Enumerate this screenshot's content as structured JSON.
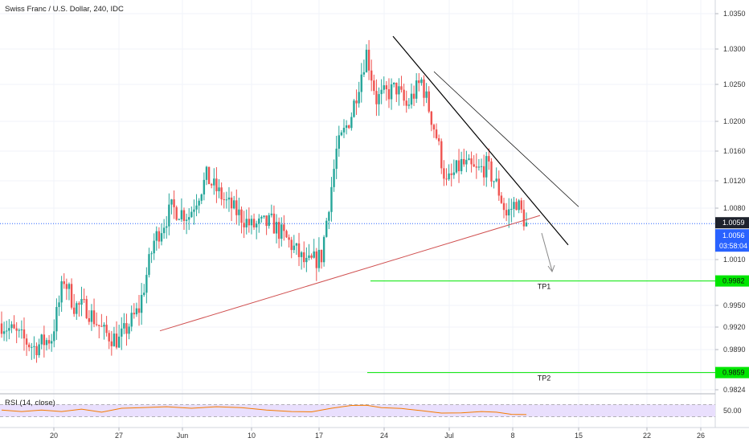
{
  "chart_data": [
    {
      "type": "candlestick",
      "title": "Swiss Franc / U.S. Dollar, 240, IDC",
      "price_axis_ticks": [
        "1.0350",
        "1.0300",
        "1.0250",
        "1.0200",
        "1.0160",
        "1.0120",
        "1.0080",
        "1.0010",
        "0.9950",
        "0.9920",
        "0.9890",
        "0.9860",
        "0.9824"
      ],
      "time_axis_ticks": [
        "20",
        "27",
        "Jun",
        "10",
        "17",
        "24",
        "Jul",
        "8",
        "15",
        "22",
        "26"
      ],
      "ylim": [
        0.9824,
        1.0355
      ],
      "price_series": {
        "start": 0.9925,
        "points": [
          [
            0,
            0.9925
          ],
          [
            8,
            0.9905
          ],
          [
            13,
            0.9893
          ],
          [
            20,
            0.9906
          ],
          [
            25,
            0.9985
          ],
          [
            29,
            0.995
          ],
          [
            34,
            0.9946
          ],
          [
            41,
            0.9912
          ],
          [
            47,
            0.9902
          ],
          [
            55,
            0.9945
          ],
          [
            61,
            1.0035
          ],
          [
            68,
            1.008
          ],
          [
            75,
            1.007
          ],
          [
            82,
            1.0125
          ],
          [
            90,
            1.0088
          ],
          [
            100,
            1.0055
          ],
          [
            108,
            1.006
          ],
          [
            116,
            1.003
          ],
          [
            122,
            1.0002
          ],
          [
            128,
            1.0015
          ],
          [
            134,
            1.016
          ],
          [
            140,
            1.021
          ],
          [
            146,
            1.0295
          ],
          [
            150,
            1.023
          ],
          [
            158,
            1.0245
          ],
          [
            162,
            1.022
          ],
          [
            168,
            1.0255
          ],
          [
            174,
            1.018
          ],
          [
            178,
            1.0115
          ],
          [
            184,
            1.0143
          ],
          [
            190,
            1.0132
          ],
          [
            194,
            1.014
          ],
          [
            198,
            1.0115
          ],
          [
            202,
            1.007
          ],
          [
            206,
            1.009
          ],
          [
            210,
            1.0057
          ]
        ]
      },
      "current_price_line": 1.0059,
      "last_price": "1.0059",
      "current_price": "1.0056",
      "countdown": "03:58:04",
      "accent_colors": {
        "up_candle": "#26a69a",
        "down_candle": "#ef5350",
        "current_price_badge": "#1e222d",
        "last_price_badge": "#2962ff",
        "tp_line": "#00e600",
        "rsi_line": "#f57c00",
        "rsi_band": "#e9dffd",
        "support_line": "#d05050",
        "resistance_line": "#000000"
      },
      "annotations": [
        {
          "type": "trendline",
          "role": "support",
          "from": [
            0.9915,
            "27"
          ],
          "to": [
            1.007,
            "8"
          ]
        },
        {
          "type": "trendline",
          "role": "resistance-inner",
          "from": [
            1.033,
            "24"
          ],
          "to": [
            1.003,
            "15"
          ]
        },
        {
          "type": "trendline",
          "role": "resistance-outer",
          "from": [
            1.027,
            "Jul"
          ],
          "to": [
            1.008,
            "15"
          ]
        },
        {
          "type": "arrow",
          "direction": "down",
          "near": "8"
        }
      ],
      "take_profits": [
        {
          "label": "TP1",
          "price": 0.9982,
          "badge": "0.9982"
        },
        {
          "label": "TP2",
          "price": 0.9859,
          "badge": "0.9859"
        }
      ]
    },
    {
      "type": "line",
      "title": "RSI (14, close)",
      "axis_ticks": [
        "50.00"
      ],
      "ylim": [
        0,
        100
      ],
      "band": [
        30,
        70
      ],
      "points": [
        [
          0,
          52
        ],
        [
          8,
          47
        ],
        [
          16,
          52
        ],
        [
          24,
          47
        ],
        [
          32,
          55
        ],
        [
          40,
          45
        ],
        [
          48,
          58
        ],
        [
          56,
          60
        ],
        [
          66,
          63
        ],
        [
          76,
          58
        ],
        [
          86,
          63
        ],
        [
          96,
          60
        ],
        [
          106,
          52
        ],
        [
          116,
          47
        ],
        [
          124,
          46
        ],
        [
          132,
          58
        ],
        [
          140,
          67
        ],
        [
          146,
          68
        ],
        [
          152,
          60
        ],
        [
          160,
          57
        ],
        [
          168,
          50
        ],
        [
          176,
          42
        ],
        [
          184,
          43
        ],
        [
          192,
          47
        ],
        [
          198,
          45
        ],
        [
          204,
          38
        ],
        [
          210,
          37
        ]
      ]
    }
  ]
}
